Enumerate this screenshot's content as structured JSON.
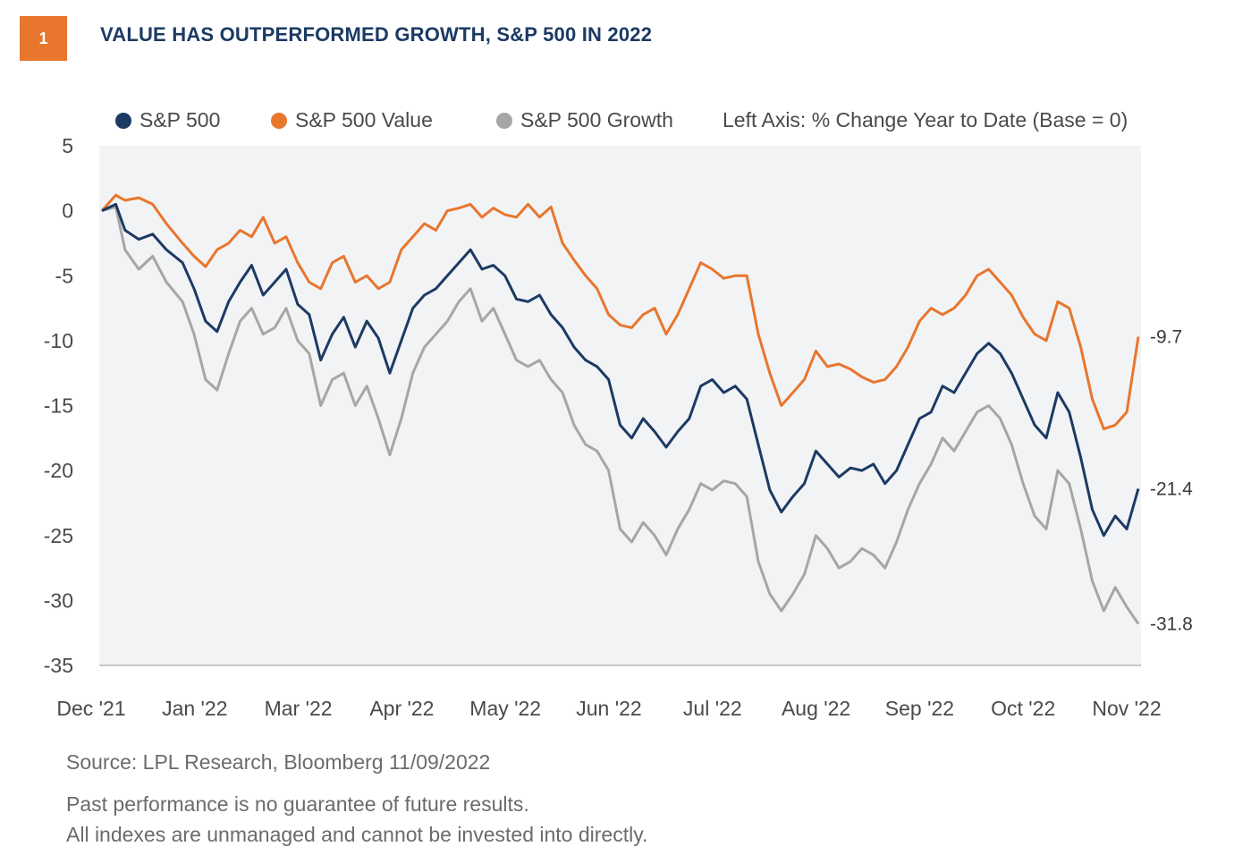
{
  "header": {
    "badge": "1",
    "title": "VALUE HAS OUTPERFORMED GROWTH, S&P 500 IN 2022"
  },
  "legend": {
    "items": [
      {
        "label": "S&P 500",
        "color": "#1c3a63"
      },
      {
        "label": "S&P 500 Value",
        "color": "#e8762d"
      },
      {
        "label": "S&P 500 Growth",
        "color": "#a6a6a6"
      }
    ],
    "axis_note": "Left Axis: % Change Year to Date (Base = 0)"
  },
  "chart_data": {
    "type": "line",
    "title": "VALUE HAS OUTPERFORMED GROWTH, S&P 500 IN 2022",
    "ylabel": "% Change Year to Date (Base = 0)",
    "ylim": [
      -35,
      5
    ],
    "yticks": [
      5,
      0,
      -5,
      -10,
      -15,
      -20,
      -25,
      -30,
      -35
    ],
    "xticks": [
      "Dec '21",
      "Jan '22",
      "Mar '22",
      "Apr '22",
      "May '22",
      "Jun '22",
      "Jul '22",
      "Aug '22",
      "Sep '22",
      "Oct '22",
      "Nov '22"
    ],
    "x_range_weeks": [
      0,
      45
    ],
    "series": [
      {
        "name": "S&P 500",
        "color": "#1c3a63",
        "points": [
          [
            0,
            0
          ],
          [
            0.6,
            0.5
          ],
          [
            1,
            -1.5
          ],
          [
            1.6,
            -2.2
          ],
          [
            2.2,
            -1.8
          ],
          [
            2.8,
            -3
          ],
          [
            3.5,
            -4
          ],
          [
            4,
            -6
          ],
          [
            4.5,
            -8.5
          ],
          [
            5,
            -9.3
          ],
          [
            5.5,
            -7
          ],
          [
            6,
            -5.5
          ],
          [
            6.5,
            -4.2
          ],
          [
            7,
            -6.5
          ],
          [
            7.5,
            -5.5
          ],
          [
            8,
            -4.5
          ],
          [
            8.5,
            -7.2
          ],
          [
            9,
            -8
          ],
          [
            9.5,
            -11.5
          ],
          [
            10,
            -9.5
          ],
          [
            10.5,
            -8.2
          ],
          [
            11,
            -10.5
          ],
          [
            11.5,
            -8.5
          ],
          [
            12,
            -9.8
          ],
          [
            12.5,
            -12.5
          ],
          [
            13,
            -10
          ],
          [
            13.5,
            -7.5
          ],
          [
            14,
            -6.5
          ],
          [
            14.5,
            -6
          ],
          [
            15,
            -5
          ],
          [
            15.5,
            -4
          ],
          [
            16,
            -3
          ],
          [
            16.5,
            -4.5
          ],
          [
            17,
            -4.2
          ],
          [
            17.5,
            -5
          ],
          [
            18,
            -6.8
          ],
          [
            18.5,
            -7
          ],
          [
            19,
            -6.5
          ],
          [
            19.5,
            -8
          ],
          [
            20,
            -9
          ],
          [
            20.5,
            -10.5
          ],
          [
            21,
            -11.5
          ],
          [
            21.5,
            -12
          ],
          [
            22,
            -13
          ],
          [
            22.5,
            -16.5
          ],
          [
            23,
            -17.5
          ],
          [
            23.5,
            -16
          ],
          [
            24,
            -17
          ],
          [
            24.5,
            -18.2
          ],
          [
            25,
            -17
          ],
          [
            25.5,
            -16
          ],
          [
            26,
            -13.5
          ],
          [
            26.5,
            -13
          ],
          [
            27,
            -14
          ],
          [
            27.5,
            -13.5
          ],
          [
            28,
            -14.5
          ],
          [
            28.5,
            -18
          ],
          [
            29,
            -21.5
          ],
          [
            29.5,
            -23.2
          ],
          [
            30,
            -22
          ],
          [
            30.5,
            -21
          ],
          [
            31,
            -18.5
          ],
          [
            31.5,
            -19.5
          ],
          [
            32,
            -20.5
          ],
          [
            32.5,
            -19.8
          ],
          [
            33,
            -20
          ],
          [
            33.5,
            -19.5
          ],
          [
            34,
            -21
          ],
          [
            34.5,
            -20
          ],
          [
            35,
            -18
          ],
          [
            35.5,
            -16
          ],
          [
            36,
            -15.5
          ],
          [
            36.5,
            -13.5
          ],
          [
            37,
            -14
          ],
          [
            37.5,
            -12.5
          ],
          [
            38,
            -11
          ],
          [
            38.5,
            -10.2
          ],
          [
            39,
            -11
          ],
          [
            39.5,
            -12.5
          ],
          [
            40,
            -14.5
          ],
          [
            40.5,
            -16.5
          ],
          [
            41,
            -17.5
          ],
          [
            41.5,
            -14
          ],
          [
            42,
            -15.5
          ],
          [
            42.5,
            -19
          ],
          [
            43,
            -23
          ],
          [
            43.5,
            -25
          ],
          [
            44,
            -23.5
          ],
          [
            44.5,
            -24.5
          ],
          [
            45,
            -21.4
          ]
        ]
      },
      {
        "name": "S&P 500 Value",
        "color": "#e8762d",
        "points": [
          [
            0,
            0
          ],
          [
            0.6,
            1.2
          ],
          [
            1,
            0.8
          ],
          [
            1.6,
            1
          ],
          [
            2.2,
            0.5
          ],
          [
            2.8,
            -1
          ],
          [
            3.5,
            -2.5
          ],
          [
            4,
            -3.5
          ],
          [
            4.5,
            -4.3
          ],
          [
            5,
            -3
          ],
          [
            5.5,
            -2.5
          ],
          [
            6,
            -1.5
          ],
          [
            6.5,
            -2
          ],
          [
            7,
            -0.5
          ],
          [
            7.5,
            -2.5
          ],
          [
            8,
            -2
          ],
          [
            8.5,
            -4
          ],
          [
            9,
            -5.5
          ],
          [
            9.5,
            -6
          ],
          [
            10,
            -4
          ],
          [
            10.5,
            -3.5
          ],
          [
            11,
            -5.5
          ],
          [
            11.5,
            -5
          ],
          [
            12,
            -6
          ],
          [
            12.5,
            -5.5
          ],
          [
            13,
            -3
          ],
          [
            13.5,
            -2
          ],
          [
            14,
            -1
          ],
          [
            14.5,
            -1.5
          ],
          [
            15,
            0
          ],
          [
            15.5,
            0.2
          ],
          [
            16,
            0.5
          ],
          [
            16.5,
            -0.5
          ],
          [
            17,
            0.2
          ],
          [
            17.5,
            -0.3
          ],
          [
            18,
            -0.5
          ],
          [
            18.5,
            0.5
          ],
          [
            19,
            -0.5
          ],
          [
            19.5,
            0.3
          ],
          [
            20,
            -2.5
          ],
          [
            20.5,
            -3.8
          ],
          [
            21,
            -5
          ],
          [
            21.5,
            -6
          ],
          [
            22,
            -8
          ],
          [
            22.5,
            -8.8
          ],
          [
            23,
            -9
          ],
          [
            23.5,
            -8
          ],
          [
            24,
            -7.5
          ],
          [
            24.5,
            -9.5
          ],
          [
            25,
            -8
          ],
          [
            25.5,
            -6
          ],
          [
            26,
            -4
          ],
          [
            26.5,
            -4.5
          ],
          [
            27,
            -5.2
          ],
          [
            27.5,
            -5
          ],
          [
            28,
            -5
          ],
          [
            28.5,
            -9.5
          ],
          [
            29,
            -12.5
          ],
          [
            29.5,
            -15
          ],
          [
            30,
            -14
          ],
          [
            30.5,
            -13
          ],
          [
            31,
            -10.8
          ],
          [
            31.5,
            -12
          ],
          [
            32,
            -11.8
          ],
          [
            32.5,
            -12.2
          ],
          [
            33,
            -12.8
          ],
          [
            33.5,
            -13.2
          ],
          [
            34,
            -13
          ],
          [
            34.5,
            -12
          ],
          [
            35,
            -10.5
          ],
          [
            35.5,
            -8.5
          ],
          [
            36,
            -7.5
          ],
          [
            36.5,
            -8
          ],
          [
            37,
            -7.5
          ],
          [
            37.5,
            -6.5
          ],
          [
            38,
            -5
          ],
          [
            38.5,
            -4.5
          ],
          [
            39,
            -5.5
          ],
          [
            39.5,
            -6.5
          ],
          [
            40,
            -8.2
          ],
          [
            40.5,
            -9.5
          ],
          [
            41,
            -10
          ],
          [
            41.5,
            -7
          ],
          [
            42,
            -7.5
          ],
          [
            42.5,
            -10.5
          ],
          [
            43,
            -14.5
          ],
          [
            43.5,
            -16.8
          ],
          [
            44,
            -16.5
          ],
          [
            44.5,
            -15.5
          ],
          [
            45,
            -9.7
          ]
        ]
      },
      {
        "name": "S&P 500 Growth",
        "color": "#a6a6a6",
        "points": [
          [
            0,
            0
          ],
          [
            0.6,
            0.3
          ],
          [
            1,
            -3
          ],
          [
            1.6,
            -4.5
          ],
          [
            2.2,
            -3.5
          ],
          [
            2.8,
            -5.5
          ],
          [
            3.5,
            -7
          ],
          [
            4,
            -9.5
          ],
          [
            4.5,
            -13
          ],
          [
            5,
            -13.8
          ],
          [
            5.5,
            -11
          ],
          [
            6,
            -8.5
          ],
          [
            6.5,
            -7.5
          ],
          [
            7,
            -9.5
          ],
          [
            7.5,
            -9
          ],
          [
            8,
            -7.5
          ],
          [
            8.5,
            -10
          ],
          [
            9,
            -11
          ],
          [
            9.5,
            -15
          ],
          [
            10,
            -13
          ],
          [
            10.5,
            -12.5
          ],
          [
            11,
            -15
          ],
          [
            11.5,
            -13.5
          ],
          [
            12,
            -16
          ],
          [
            12.5,
            -18.8
          ],
          [
            13,
            -16
          ],
          [
            13.5,
            -12.5
          ],
          [
            14,
            -10.5
          ],
          [
            14.5,
            -9.5
          ],
          [
            15,
            -8.5
          ],
          [
            15.5,
            -7
          ],
          [
            16,
            -6
          ],
          [
            16.5,
            -8.5
          ],
          [
            17,
            -7.5
          ],
          [
            17.5,
            -9.5
          ],
          [
            18,
            -11.5
          ],
          [
            18.5,
            -12
          ],
          [
            19,
            -11.5
          ],
          [
            19.5,
            -13
          ],
          [
            20,
            -14
          ],
          [
            20.5,
            -16.5
          ],
          [
            21,
            -18
          ],
          [
            21.5,
            -18.5
          ],
          [
            22,
            -20
          ],
          [
            22.5,
            -24.5
          ],
          [
            23,
            -25.5
          ],
          [
            23.5,
            -24
          ],
          [
            24,
            -25
          ],
          [
            24.5,
            -26.5
          ],
          [
            25,
            -24.5
          ],
          [
            25.5,
            -23
          ],
          [
            26,
            -21
          ],
          [
            26.5,
            -21.5
          ],
          [
            27,
            -20.8
          ],
          [
            27.5,
            -21
          ],
          [
            28,
            -22
          ],
          [
            28.5,
            -27
          ],
          [
            29,
            -29.5
          ],
          [
            29.5,
            -30.8
          ],
          [
            30,
            -29.5
          ],
          [
            30.5,
            -28
          ],
          [
            31,
            -25
          ],
          [
            31.5,
            -26
          ],
          [
            32,
            -27.5
          ],
          [
            32.5,
            -27
          ],
          [
            33,
            -26
          ],
          [
            33.5,
            -26.5
          ],
          [
            34,
            -27.5
          ],
          [
            34.5,
            -25.5
          ],
          [
            35,
            -23
          ],
          [
            35.5,
            -21
          ],
          [
            36,
            -19.5
          ],
          [
            36.5,
            -17.5
          ],
          [
            37,
            -18.5
          ],
          [
            37.5,
            -17
          ],
          [
            38,
            -15.5
          ],
          [
            38.5,
            -15
          ],
          [
            39,
            -16
          ],
          [
            39.5,
            -18
          ],
          [
            40,
            -21
          ],
          [
            40.5,
            -23.5
          ],
          [
            41,
            -24.5
          ],
          [
            41.5,
            -20
          ],
          [
            42,
            -21
          ],
          [
            42.5,
            -24.5
          ],
          [
            43,
            -28.5
          ],
          [
            43.5,
            -30.8
          ],
          [
            44,
            -29
          ],
          [
            44.5,
            -30.5
          ],
          [
            45,
            -31.8
          ]
        ]
      }
    ],
    "end_labels": [
      "-9.7",
      "-21.4",
      "-31.8"
    ],
    "end_values": [
      -9.7,
      -21.4,
      -31.8
    ]
  },
  "footer": {
    "source": "Source: LPL Research, Bloomberg  11/09/2022",
    "notes": [
      "Past performance is no guarantee of future results.",
      "All indexes are unmanaged and cannot be invested into directly."
    ]
  }
}
